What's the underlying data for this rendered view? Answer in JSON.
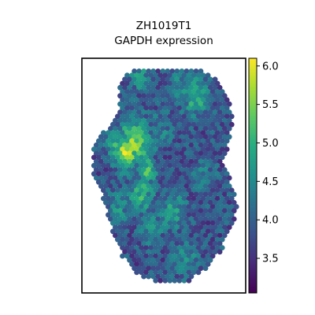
{
  "chart_data": {
    "type": "heatmap",
    "title": "ZH1019T1",
    "subtitle": "GAPDH expression",
    "xlabel": "",
    "ylabel": "",
    "grid": false,
    "colormap": "viridis",
    "colorbar": {
      "min": 3.05,
      "max": 6.1,
      "ticks": [
        3.5,
        4.0,
        4.5,
        5.0,
        5.5,
        6.0
      ],
      "tick_labels": [
        "3.5",
        "4.0",
        "4.5",
        "5.0",
        "5.5",
        "6.0"
      ],
      "placement": "right"
    },
    "baseline_value": 3.85,
    "hotspots": [
      {
        "x": 0.27,
        "y": 0.4,
        "value": 6.0,
        "spread": 0.05
      },
      {
        "x": 0.32,
        "y": 0.36,
        "value": 5.5,
        "spread": 0.07
      },
      {
        "x": 0.22,
        "y": 0.36,
        "value": 4.9,
        "spread": 0.05
      },
      {
        "x": 0.4,
        "y": 0.48,
        "value": 5.2,
        "spread": 0.04
      },
      {
        "x": 0.36,
        "y": 0.58,
        "value": 4.9,
        "spread": 0.06
      },
      {
        "x": 0.22,
        "y": 0.63,
        "value": 4.6,
        "spread": 0.05
      },
      {
        "x": 0.7,
        "y": 0.16,
        "value": 5.0,
        "spread": 0.06
      },
      {
        "x": 0.6,
        "y": 0.12,
        "value": 4.5,
        "spread": 0.05
      },
      {
        "x": 0.35,
        "y": 0.08,
        "value": 4.7,
        "spread": 0.04
      },
      {
        "x": 0.55,
        "y": 0.65,
        "value": 4.7,
        "spread": 0.06
      },
      {
        "x": 0.42,
        "y": 0.72,
        "value": 4.6,
        "spread": 0.05
      },
      {
        "x": 0.63,
        "y": 0.85,
        "value": 4.6,
        "spread": 0.05
      },
      {
        "x": 0.75,
        "y": 0.5,
        "value": 4.3,
        "spread": 0.05
      },
      {
        "x": 0.48,
        "y": 0.3,
        "value": 4.4,
        "spread": 0.05
      }
    ],
    "tissue_outline": [
      [
        0.27,
        0.06
      ],
      [
        0.4,
        0.04
      ],
      [
        0.55,
        0.05
      ],
      [
        0.72,
        0.05
      ],
      [
        0.84,
        0.09
      ],
      [
        0.9,
        0.16
      ],
      [
        0.92,
        0.26
      ],
      [
        0.9,
        0.36
      ],
      [
        0.86,
        0.44
      ],
      [
        0.91,
        0.52
      ],
      [
        0.95,
        0.62
      ],
      [
        0.92,
        0.72
      ],
      [
        0.85,
        0.82
      ],
      [
        0.76,
        0.9
      ],
      [
        0.65,
        0.95
      ],
      [
        0.5,
        0.96
      ],
      [
        0.35,
        0.93
      ],
      [
        0.25,
        0.85
      ],
      [
        0.18,
        0.72
      ],
      [
        0.13,
        0.6
      ],
      [
        0.06,
        0.48
      ],
      [
        0.07,
        0.37
      ],
      [
        0.15,
        0.3
      ],
      [
        0.22,
        0.22
      ],
      [
        0.23,
        0.12
      ]
    ],
    "x_range": [
      0,
      1
    ],
    "y_range": [
      0,
      1
    ]
  }
}
